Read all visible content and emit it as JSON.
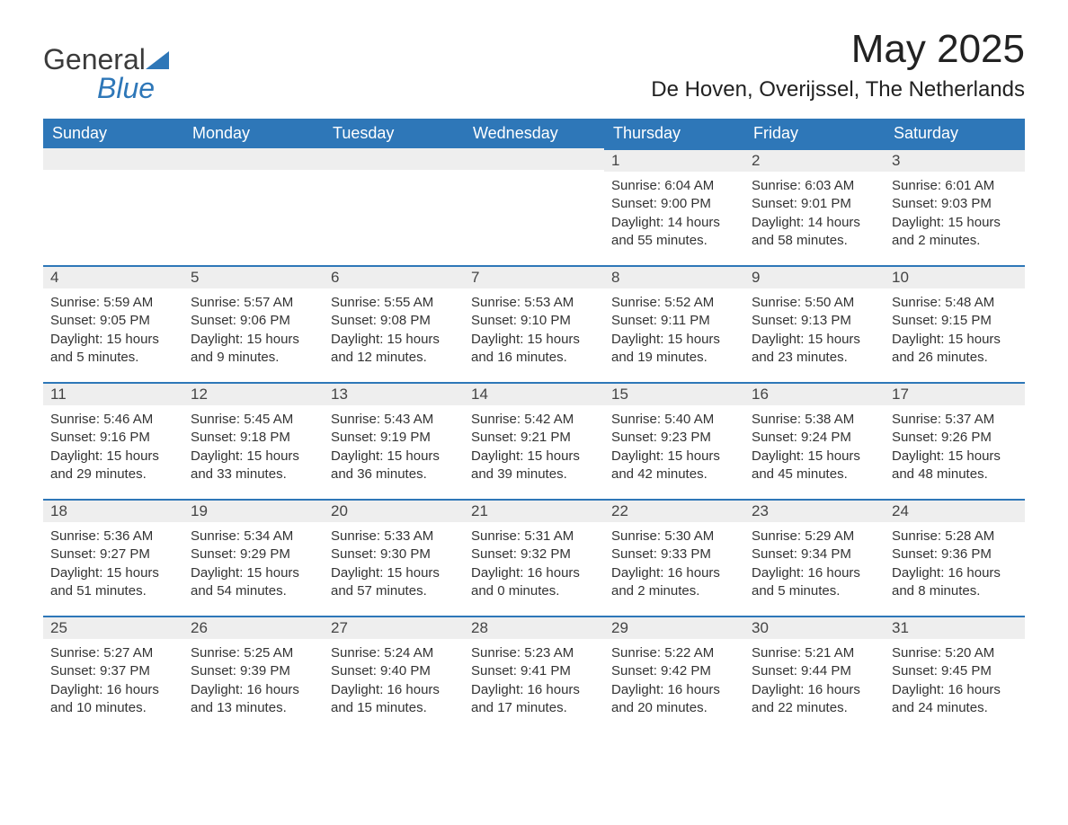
{
  "brand": {
    "text_general": "General",
    "text_blue": "Blue",
    "shape_color": "#2e77b8",
    "general_color": "#3b3b3b"
  },
  "header": {
    "month_title": "May 2025",
    "location": "De Hoven, Overijssel, The Netherlands"
  },
  "styling": {
    "header_bg": "#2e77b8",
    "header_text": "#ffffff",
    "daynum_bg": "#eeeeee",
    "daynum_border_top": "#2e77b8",
    "body_bg": "#ffffff",
    "text_color": "#333333",
    "title_fontsize_pt": 33,
    "location_fontsize_pt": 18,
    "dow_fontsize_pt": 14,
    "body_fontsize_pt": 11,
    "columns": 7,
    "rows": 5
  },
  "days_of_week": [
    "Sunday",
    "Monday",
    "Tuesday",
    "Wednesday",
    "Thursday",
    "Friday",
    "Saturday"
  ],
  "weeks": [
    [
      {
        "blank": true
      },
      {
        "blank": true
      },
      {
        "blank": true
      },
      {
        "blank": true
      },
      {
        "num": "1",
        "sunrise": "Sunrise: 6:04 AM",
        "sunset": "Sunset: 9:00 PM",
        "daylight": "Daylight: 14 hours and 55 minutes."
      },
      {
        "num": "2",
        "sunrise": "Sunrise: 6:03 AM",
        "sunset": "Sunset: 9:01 PM",
        "daylight": "Daylight: 14 hours and 58 minutes."
      },
      {
        "num": "3",
        "sunrise": "Sunrise: 6:01 AM",
        "sunset": "Sunset: 9:03 PM",
        "daylight": "Daylight: 15 hours and 2 minutes."
      }
    ],
    [
      {
        "num": "4",
        "sunrise": "Sunrise: 5:59 AM",
        "sunset": "Sunset: 9:05 PM",
        "daylight": "Daylight: 15 hours and 5 minutes."
      },
      {
        "num": "5",
        "sunrise": "Sunrise: 5:57 AM",
        "sunset": "Sunset: 9:06 PM",
        "daylight": "Daylight: 15 hours and 9 minutes."
      },
      {
        "num": "6",
        "sunrise": "Sunrise: 5:55 AM",
        "sunset": "Sunset: 9:08 PM",
        "daylight": "Daylight: 15 hours and 12 minutes."
      },
      {
        "num": "7",
        "sunrise": "Sunrise: 5:53 AM",
        "sunset": "Sunset: 9:10 PM",
        "daylight": "Daylight: 15 hours and 16 minutes."
      },
      {
        "num": "8",
        "sunrise": "Sunrise: 5:52 AM",
        "sunset": "Sunset: 9:11 PM",
        "daylight": "Daylight: 15 hours and 19 minutes."
      },
      {
        "num": "9",
        "sunrise": "Sunrise: 5:50 AM",
        "sunset": "Sunset: 9:13 PM",
        "daylight": "Daylight: 15 hours and 23 minutes."
      },
      {
        "num": "10",
        "sunrise": "Sunrise: 5:48 AM",
        "sunset": "Sunset: 9:15 PM",
        "daylight": "Daylight: 15 hours and 26 minutes."
      }
    ],
    [
      {
        "num": "11",
        "sunrise": "Sunrise: 5:46 AM",
        "sunset": "Sunset: 9:16 PM",
        "daylight": "Daylight: 15 hours and 29 minutes."
      },
      {
        "num": "12",
        "sunrise": "Sunrise: 5:45 AM",
        "sunset": "Sunset: 9:18 PM",
        "daylight": "Daylight: 15 hours and 33 minutes."
      },
      {
        "num": "13",
        "sunrise": "Sunrise: 5:43 AM",
        "sunset": "Sunset: 9:19 PM",
        "daylight": "Daylight: 15 hours and 36 minutes."
      },
      {
        "num": "14",
        "sunrise": "Sunrise: 5:42 AM",
        "sunset": "Sunset: 9:21 PM",
        "daylight": "Daylight: 15 hours and 39 minutes."
      },
      {
        "num": "15",
        "sunrise": "Sunrise: 5:40 AM",
        "sunset": "Sunset: 9:23 PM",
        "daylight": "Daylight: 15 hours and 42 minutes."
      },
      {
        "num": "16",
        "sunrise": "Sunrise: 5:38 AM",
        "sunset": "Sunset: 9:24 PM",
        "daylight": "Daylight: 15 hours and 45 minutes."
      },
      {
        "num": "17",
        "sunrise": "Sunrise: 5:37 AM",
        "sunset": "Sunset: 9:26 PM",
        "daylight": "Daylight: 15 hours and 48 minutes."
      }
    ],
    [
      {
        "num": "18",
        "sunrise": "Sunrise: 5:36 AM",
        "sunset": "Sunset: 9:27 PM",
        "daylight": "Daylight: 15 hours and 51 minutes."
      },
      {
        "num": "19",
        "sunrise": "Sunrise: 5:34 AM",
        "sunset": "Sunset: 9:29 PM",
        "daylight": "Daylight: 15 hours and 54 minutes."
      },
      {
        "num": "20",
        "sunrise": "Sunrise: 5:33 AM",
        "sunset": "Sunset: 9:30 PM",
        "daylight": "Daylight: 15 hours and 57 minutes."
      },
      {
        "num": "21",
        "sunrise": "Sunrise: 5:31 AM",
        "sunset": "Sunset: 9:32 PM",
        "daylight": "Daylight: 16 hours and 0 minutes."
      },
      {
        "num": "22",
        "sunrise": "Sunrise: 5:30 AM",
        "sunset": "Sunset: 9:33 PM",
        "daylight": "Daylight: 16 hours and 2 minutes."
      },
      {
        "num": "23",
        "sunrise": "Sunrise: 5:29 AM",
        "sunset": "Sunset: 9:34 PM",
        "daylight": "Daylight: 16 hours and 5 minutes."
      },
      {
        "num": "24",
        "sunrise": "Sunrise: 5:28 AM",
        "sunset": "Sunset: 9:36 PM",
        "daylight": "Daylight: 16 hours and 8 minutes."
      }
    ],
    [
      {
        "num": "25",
        "sunrise": "Sunrise: 5:27 AM",
        "sunset": "Sunset: 9:37 PM",
        "daylight": "Daylight: 16 hours and 10 minutes."
      },
      {
        "num": "26",
        "sunrise": "Sunrise: 5:25 AM",
        "sunset": "Sunset: 9:39 PM",
        "daylight": "Daylight: 16 hours and 13 minutes."
      },
      {
        "num": "27",
        "sunrise": "Sunrise: 5:24 AM",
        "sunset": "Sunset: 9:40 PM",
        "daylight": "Daylight: 16 hours and 15 minutes."
      },
      {
        "num": "28",
        "sunrise": "Sunrise: 5:23 AM",
        "sunset": "Sunset: 9:41 PM",
        "daylight": "Daylight: 16 hours and 17 minutes."
      },
      {
        "num": "29",
        "sunrise": "Sunrise: 5:22 AM",
        "sunset": "Sunset: 9:42 PM",
        "daylight": "Daylight: 16 hours and 20 minutes."
      },
      {
        "num": "30",
        "sunrise": "Sunrise: 5:21 AM",
        "sunset": "Sunset: 9:44 PM",
        "daylight": "Daylight: 16 hours and 22 minutes."
      },
      {
        "num": "31",
        "sunrise": "Sunrise: 5:20 AM",
        "sunset": "Sunset: 9:45 PM",
        "daylight": "Daylight: 16 hours and 24 minutes."
      }
    ]
  ]
}
